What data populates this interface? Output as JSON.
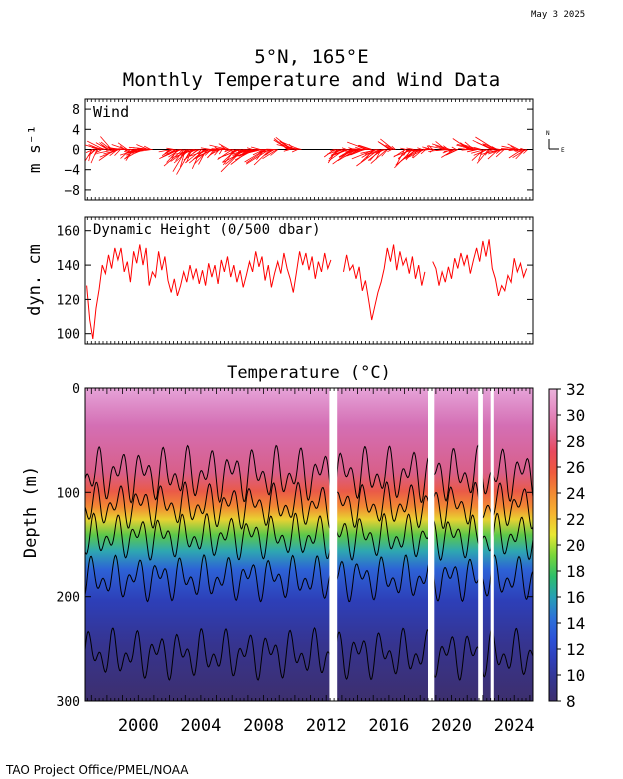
{
  "header": {
    "date": "May  3 2025",
    "title_line1": "5°N, 165°E",
    "title_line2": "Monthly Temperature and Wind Data"
  },
  "footer": {
    "credit": "TAO Project Office/PMEL/NOAA"
  },
  "colors": {
    "wind": "#ff0000",
    "dynamic_height": "#ff0000",
    "colorbar": [
      "#3d2f6e",
      "#34358f",
      "#2f3fb8",
      "#2c52d8",
      "#2d72d8",
      "#27a0b5",
      "#2dbf6a",
      "#79d63a",
      "#e8e832",
      "#f7b530",
      "#f28a33",
      "#ef5a3e",
      "#e8495e",
      "#dd6b9a",
      "#e48cc3",
      "#eab2da"
    ]
  },
  "chart_data": [
    {
      "type": "line",
      "panel": "wind",
      "title": "Wind",
      "ylabel": "m s⁻¹",
      "ylim": [
        -10,
        10
      ],
      "yticks": [
        -8,
        -4,
        0,
        4,
        8
      ],
      "compass": {
        "north": "N",
        "east": "E"
      },
      "xlim": [
        1996.6,
        2025.2
      ],
      "series": [
        {
          "values": [
            [
              1997.0,
              -1.2,
              -2.0
            ],
            [
              1997.5,
              -2.5,
              1.0
            ],
            [
              1998.0,
              -1.8,
              1.8
            ],
            [
              1998.5,
              -3.0,
              -1.5
            ],
            [
              1999.0,
              -2.2,
              0.9
            ],
            [
              1999.5,
              -1.5,
              -1.8
            ],
            [
              2000.0,
              -2.8,
              -1.2
            ],
            [
              2000.5,
              -3.6,
              0.5
            ],
            [
              2002.0,
              -2.0,
              -1.0
            ],
            [
              2002.5,
              -3.0,
              -2.5
            ],
            [
              2003.0,
              -2.6,
              -4.0
            ],
            [
              2003.5,
              -3.4,
              -1.5
            ],
            [
              2004.0,
              -2.5,
              -3.0
            ],
            [
              2004.5,
              -3.0,
              -2.0
            ],
            [
              2005.0,
              -1.6,
              -1.0
            ],
            [
              2005.5,
              -2.8,
              0.8
            ],
            [
              2006.0,
              -2.2,
              -2.5
            ],
            [
              2006.5,
              -3.5,
              -3.5
            ],
            [
              2007.0,
              -3.0,
              -2.2
            ],
            [
              2007.5,
              -4.0,
              -1.0
            ],
            [
              2008.0,
              -3.5,
              -2.8
            ],
            [
              2008.5,
              -2.2,
              -1.2
            ],
            [
              2009.5,
              -2.5,
              2.0
            ],
            [
              2010.0,
              -3.0,
              1.0
            ],
            [
              2012.5,
              -1.5,
              -2.0
            ],
            [
              2013.0,
              -2.5,
              -1.5
            ],
            [
              2013.5,
              -3.0,
              -2.2
            ],
            [
              2014.0,
              -2.6,
              -1.0
            ],
            [
              2014.5,
              -3.2,
              0.8
            ],
            [
              2015.0,
              -3.5,
              -2.5
            ],
            [
              2015.5,
              -2.8,
              -2.0
            ],
            [
              2016.0,
              -2.0,
              1.5
            ],
            [
              2017.0,
              -1.8,
              -2.2
            ],
            [
              2017.5,
              -3.2,
              -3.0
            ],
            [
              2018.0,
              -2.5,
              -1.5
            ],
            [
              2018.5,
              -1.5,
              0.5
            ],
            [
              2019.5,
              -2.8,
              1.2
            ],
            [
              2020.0,
              -2.0,
              -1.0
            ],
            [
              2021.0,
              -2.5,
              1.5
            ],
            [
              2021.5,
              -3.0,
              0.5
            ],
            [
              2022.0,
              -2.2,
              -2.0
            ],
            [
              2022.5,
              -3.0,
              1.8
            ],
            [
              2023.0,
              -2.8,
              -1.2
            ],
            [
              2024.0,
              -2.5,
              0.6
            ],
            [
              2024.5,
              -2.0,
              -1.5
            ]
          ]
        }
      ]
    },
    {
      "type": "line",
      "panel": "dynamic_height",
      "title": "Dynamic Height (0/500 dbar)",
      "ylabel": "dyn. cm",
      "ylim": [
        94,
        168
      ],
      "yticks": [
        100,
        120,
        140,
        160
      ],
      "xlim": [
        1996.6,
        2025.2
      ],
      "series": [
        {
          "values": [
            [
              1996.7,
              128
            ],
            [
              1996.9,
              108
            ],
            [
              1997.1,
              97
            ],
            [
              1997.3,
              115
            ],
            [
              1997.5,
              126
            ],
            [
              1997.7,
              140
            ],
            [
              1997.9,
              135
            ],
            [
              1998.1,
              146
            ],
            [
              1998.3,
              138
            ],
            [
              1998.5,
              150
            ],
            [
              1998.7,
              143
            ],
            [
              1998.9,
              150
            ],
            [
              1999.1,
              136
            ],
            [
              1999.3,
              142
            ],
            [
              1999.5,
              130
            ],
            [
              1999.7,
              148
            ],
            [
              1999.9,
              141
            ],
            [
              2000.1,
              152
            ],
            [
              2000.3,
              140
            ],
            [
              2000.5,
              150
            ],
            [
              2000.7,
              128
            ],
            [
              2000.9,
              136
            ],
            [
              2001.1,
              133
            ],
            [
              2001.3,
              148
            ],
            [
              2001.5,
              137
            ],
            [
              2001.7,
              145
            ],
            [
              2001.9,
              131
            ],
            [
              2002.1,
              124
            ],
            [
              2002.3,
              132
            ],
            [
              2002.5,
              122
            ],
            [
              2002.7,
              128
            ],
            [
              2002.9,
              136
            ],
            [
              2003.1,
              130
            ],
            [
              2003.3,
              140
            ],
            [
              2003.5,
              132
            ],
            [
              2003.7,
              138
            ],
            [
              2003.9,
              129
            ],
            [
              2004.1,
              137
            ],
            [
              2004.3,
              128
            ],
            [
              2004.5,
              141
            ],
            [
              2004.7,
              133
            ],
            [
              2004.9,
              140
            ],
            [
              2005.1,
              129
            ],
            [
              2005.3,
              143
            ],
            [
              2005.5,
              136
            ],
            [
              2005.7,
              145
            ],
            [
              2005.9,
              133
            ],
            [
              2006.1,
              140
            ],
            [
              2006.3,
              130
            ],
            [
              2006.5,
              137
            ],
            [
              2006.7,
              127
            ],
            [
              2006.9,
              134
            ],
            [
              2007.1,
              142
            ],
            [
              2007.3,
              136
            ],
            [
              2007.5,
              148
            ],
            [
              2007.7,
              139
            ],
            [
              2007.9,
              145
            ],
            [
              2008.1,
              131
            ],
            [
              2008.3,
              140
            ],
            [
              2008.5,
              127
            ],
            [
              2008.7,
              135
            ],
            [
              2008.9,
              142
            ],
            [
              2009.1,
              135
            ],
            [
              2009.3,
              147
            ],
            [
              2009.5,
              138
            ],
            [
              2009.7,
              132
            ],
            [
              2009.9,
              124
            ],
            [
              2010.1,
              136
            ],
            [
              2010.3,
              148
            ],
            [
              2010.5,
              140
            ],
            [
              2010.7,
              147
            ],
            [
              2010.9,
              137
            ],
            [
              2011.1,
              145
            ],
            [
              2011.3,
              132
            ],
            [
              2011.5,
              142
            ],
            [
              2011.7,
              136
            ],
            [
              2011.9,
              147
            ],
            [
              2012.1,
              138
            ],
            [
              2012.3,
              143
            ],
            [
              2013.0,
              null
            ],
            [
              2013.1,
              136
            ],
            [
              2013.3,
              146
            ],
            [
              2013.5,
              137
            ],
            [
              2013.7,
              140
            ],
            [
              2013.9,
              132
            ],
            [
              2014.1,
              139
            ],
            [
              2014.3,
              125
            ],
            [
              2014.5,
              131
            ],
            [
              2014.7,
              120
            ],
            [
              2014.9,
              108
            ],
            [
              2015.1,
              116
            ],
            [
              2015.3,
              124
            ],
            [
              2015.5,
              130
            ],
            [
              2015.7,
              138
            ],
            [
              2015.9,
              150
            ],
            [
              2016.1,
              142
            ],
            [
              2016.3,
              152
            ],
            [
              2016.5,
              137
            ],
            [
              2016.7,
              148
            ],
            [
              2016.9,
              140
            ],
            [
              2017.1,
              144
            ],
            [
              2017.3,
              135
            ],
            [
              2017.5,
              145
            ],
            [
              2017.7,
              132
            ],
            [
              2017.9,
              140
            ],
            [
              2018.1,
              128
            ],
            [
              2018.3,
              136
            ],
            [
              2018.6,
              null
            ],
            [
              2018.8,
              142
            ],
            [
              2019.0,
              138
            ],
            [
              2019.2,
              128
            ],
            [
              2019.4,
              136
            ],
            [
              2019.6,
              130
            ],
            [
              2019.8,
              139
            ],
            [
              2020.0,
              132
            ],
            [
              2020.2,
              144
            ],
            [
              2020.4,
              138
            ],
            [
              2020.6,
              147
            ],
            [
              2020.8,
              140
            ],
            [
              2021.0,
              146
            ],
            [
              2021.2,
              135
            ],
            [
              2021.4,
              143
            ],
            [
              2021.6,
              150
            ],
            [
              2021.8,
              142
            ],
            [
              2022.0,
              154
            ],
            [
              2022.2,
              145
            ],
            [
              2022.4,
              155
            ],
            [
              2022.6,
              138
            ],
            [
              2022.8,
              132
            ],
            [
              2023.0,
              122
            ],
            [
              2023.2,
              128
            ],
            [
              2023.4,
              125
            ],
            [
              2023.6,
              134
            ],
            [
              2023.8,
              130
            ],
            [
              2024.0,
              144
            ],
            [
              2024.2,
              136
            ],
            [
              2024.4,
              141
            ],
            [
              2024.6,
              133
            ],
            [
              2024.8,
              138
            ]
          ]
        }
      ]
    },
    {
      "type": "heatmap",
      "panel": "temperature",
      "title": "Temperature (°C)",
      "ylabel": "Depth (m)",
      "xlabel": "",
      "ylim": [
        300,
        0
      ],
      "yticks": [
        0,
        100,
        200,
        300
      ],
      "xlim": [
        1996.6,
        2025.2
      ],
      "xticks": [
        2000,
        2004,
        2008,
        2012,
        2016,
        2020,
        2024
      ],
      "colorbar": {
        "min": 8,
        "max": 32,
        "ticks": [
          8,
          10,
          12,
          14,
          16,
          18,
          20,
          22,
          24,
          26,
          28,
          30,
          32
        ]
      },
      "data_gaps": [
        [
          2012.2,
          2012.7
        ],
        [
          2018.5,
          2018.9
        ],
        [
          2021.7,
          2022.0
        ],
        [
          2022.5,
          2022.7
        ]
      ],
      "isotherms": [
        {
          "temp": 28,
          "depth_min": 55,
          "depth_max": 110
        },
        {
          "temp": 24,
          "depth_min": 90,
          "depth_max": 135
        },
        {
          "temp": 20,
          "depth_min": 120,
          "depth_max": 165
        },
        {
          "temp": 16,
          "depth_min": 160,
          "depth_max": 205
        },
        {
          "temp": 12,
          "depth_min": 230,
          "depth_max": 280
        }
      ]
    }
  ]
}
